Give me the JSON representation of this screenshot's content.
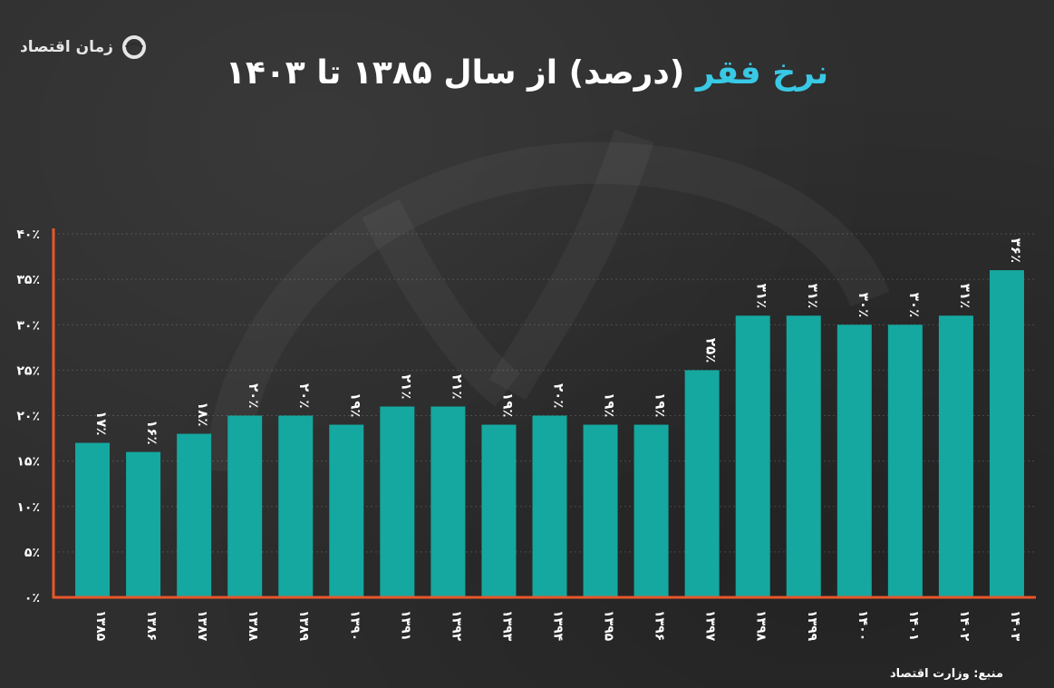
{
  "brand": {
    "name": "زمان اقتصاد",
    "logo_icon": "zaman-eghtesad-logo-icon"
  },
  "title": {
    "accent": "نرخ فقر",
    "rest": " (درصد) از سال ۱۳۸۵ تا ۱۴۰۳"
  },
  "source": "منبع: وزارت اقتصاد",
  "colors": {
    "background": "#2e2e2e",
    "bar": "#14a8a0",
    "axis": "#e8562a",
    "title_accent": "#38c9e5",
    "text": "#ffffff"
  },
  "chart_data": {
    "type": "bar",
    "categories": [
      "۱۳۸۵",
      "۱۳۸۶",
      "۱۳۸۷",
      "۱۳۸۸",
      "۱۳۸۹",
      "۱۳۹۰",
      "۱۳۹۱",
      "۱۳۹۲",
      "۱۳۹۳",
      "۱۳۹۴",
      "۱۳۹۵",
      "۱۳۹۶",
      "۱۳۹۷",
      "۱۳۹۸",
      "۱۳۹۹",
      "۱۴۰۰",
      "۱۴۰۱",
      "۱۴۰۲",
      "۱۴۰۳"
    ],
    "values": [
      17,
      16,
      18,
      20,
      20,
      19,
      21,
      21,
      19,
      20,
      19,
      19,
      25,
      31,
      31,
      30,
      30,
      31,
      36
    ],
    "value_labels": [
      "۱۷٪",
      "۱۶٪",
      "۱۸٪",
      "۲۰٪",
      "۲۰٪",
      "۱۹٪",
      "۲۱٪",
      "۲۱٪",
      "۱۹٪",
      "۲۰٪",
      "۱۹٪",
      "۱۹٪",
      "۲۵٪",
      "۳۱٪",
      "۳۱٪",
      "۳۰٪",
      "۳۰٪",
      "۳۱٪",
      "۳۶٪"
    ],
    "y_ticks": [
      0,
      5,
      10,
      15,
      20,
      25,
      30,
      35,
      40
    ],
    "y_tick_labels": [
      "۰٪",
      "۵٪",
      "۱۰٪",
      "۱۵٪",
      "۲۰٪",
      "۲۵٪",
      "۳۰٪",
      "۳۵٪",
      "۴۰٪"
    ],
    "ylim": [
      0,
      40
    ],
    "grid": true,
    "legend": "none"
  }
}
